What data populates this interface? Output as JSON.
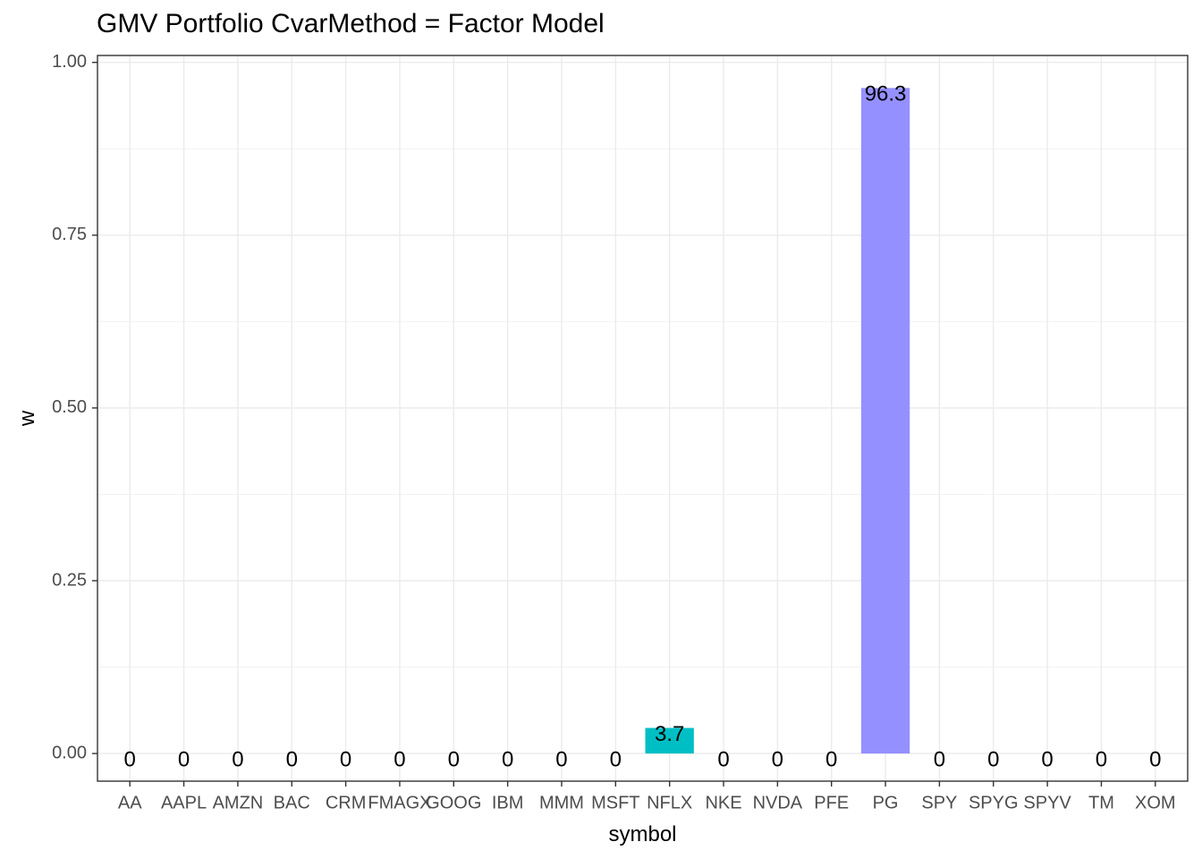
{
  "chart_data": {
    "type": "bar",
    "title": "GMV Portfolio CvarMethod = Factor Model",
    "xlabel": "symbol",
    "ylabel": "w",
    "ylim": [
      -0.04,
      1.01
    ],
    "yticks": [
      0.0,
      0.25,
      0.5,
      0.75,
      1.0
    ],
    "ytick_labels": [
      "0.00",
      "0.25",
      "0.50",
      "0.75",
      "1.00"
    ],
    "grid": true,
    "legend": "none",
    "categories": [
      "AA",
      "AAPL",
      "AMZN",
      "BAC",
      "CRM",
      "FMAGX",
      "GOOG",
      "IBM",
      "MMM",
      "MSFT",
      "NFLX",
      "NKE",
      "NVDA",
      "PFE",
      "PG",
      "SPY",
      "SPYG",
      "SPYV",
      "TM",
      "XOM"
    ],
    "values": [
      0,
      0,
      0,
      0,
      0,
      0,
      0,
      0,
      0,
      0,
      0.037,
      0,
      0,
      0,
      0.963,
      0,
      0,
      0,
      0,
      0
    ],
    "labels": [
      "0",
      "0",
      "0",
      "0",
      "0",
      "0",
      "0",
      "0",
      "0",
      "0",
      "3.7",
      "0",
      "0",
      "0",
      "96.3",
      "0",
      "0",
      "0",
      "0",
      "0"
    ],
    "colors": [
      "#F8766D",
      "#E58700",
      "#C99800",
      "#A3A500",
      "#6BB100",
      "#00BA38",
      "#00BF7D",
      "#00C0AF",
      "#00BCD8",
      "#00B0F6",
      "#00BFC4",
      "#B983FF",
      "#E76BF3",
      "#FD61D1",
      "#9590FF",
      "#FF67A4",
      "#F8766D",
      "#E58700",
      "#C99800",
      "#A3A500"
    ]
  }
}
